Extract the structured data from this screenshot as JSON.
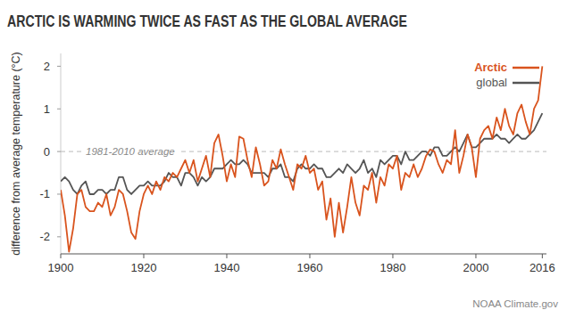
{
  "chart_data": {
    "type": "line",
    "title": "ARCTIC IS WARMING TWICE AS FAST AS THE GLOBAL AVERAGE",
    "y_label": "difference from average temperature (°C)",
    "source": "NOAA Climate.gov",
    "annotations": [
      {
        "text": "1981-2010 average",
        "y": 0
      }
    ],
    "x": [
      1900,
      1901,
      1902,
      1903,
      1904,
      1905,
      1906,
      1907,
      1908,
      1909,
      1910,
      1911,
      1912,
      1913,
      1914,
      1915,
      1916,
      1917,
      1918,
      1919,
      1920,
      1921,
      1922,
      1923,
      1924,
      1925,
      1926,
      1927,
      1928,
      1929,
      1930,
      1931,
      1932,
      1933,
      1934,
      1935,
      1936,
      1937,
      1938,
      1939,
      1940,
      1941,
      1942,
      1943,
      1944,
      1945,
      1946,
      1947,
      1948,
      1949,
      1950,
      1951,
      1952,
      1953,
      1954,
      1955,
      1956,
      1957,
      1958,
      1959,
      1960,
      1961,
      1962,
      1963,
      1964,
      1965,
      1966,
      1967,
      1968,
      1969,
      1970,
      1971,
      1972,
      1973,
      1974,
      1975,
      1976,
      1977,
      1978,
      1979,
      1980,
      1981,
      1982,
      1983,
      1984,
      1985,
      1986,
      1987,
      1988,
      1989,
      1990,
      1991,
      1992,
      1993,
      1994,
      1995,
      1996,
      1997,
      1998,
      1999,
      2000,
      2001,
      2002,
      2003,
      2004,
      2005,
      2006,
      2007,
      2008,
      2009,
      2010,
      2011,
      2012,
      2013,
      2014,
      2015,
      2016
    ],
    "series": [
      {
        "name": "Arctic",
        "color": "#d9541e",
        "values": [
          -0.9,
          -1.5,
          -2.35,
          -1.8,
          -1.0,
          -0.9,
          -1.3,
          -1.4,
          -1.4,
          -1.2,
          -1.3,
          -1.0,
          -1.5,
          -1.3,
          -0.9,
          -1.0,
          -1.4,
          -1.9,
          -2.05,
          -1.4,
          -1.0,
          -0.8,
          -1.0,
          -0.7,
          -0.9,
          -0.6,
          -0.7,
          -0.5,
          -0.6,
          -0.4,
          -0.2,
          -0.5,
          -0.2,
          -0.7,
          -0.4,
          -0.1,
          -0.6,
          0.2,
          0.4,
          -0.1,
          -0.7,
          -0.3,
          -0.6,
          0.35,
          0.3,
          -0.2,
          -0.6,
          0.1,
          -0.3,
          -0.8,
          -0.7,
          -0.2,
          -0.4,
          0.05,
          -0.3,
          -0.6,
          -0.9,
          -0.3,
          -0.4,
          -0.1,
          -0.5,
          -0.4,
          -0.9,
          -0.7,
          -1.6,
          -1.1,
          -2.0,
          -1.2,
          -1.9,
          -1.3,
          -0.6,
          -1.2,
          -1.5,
          -0.8,
          -0.9,
          -0.5,
          -1.2,
          -0.6,
          -0.8,
          -0.3,
          -0.4,
          -0.1,
          -0.9,
          -0.5,
          -0.6,
          -0.3,
          -0.6,
          -0.4,
          -0.1,
          0.05,
          0.0,
          -0.3,
          -0.5,
          -0.2,
          -0.3,
          0.5,
          -0.5,
          -0.1,
          0.4,
          0.1,
          -0.6,
          0.3,
          0.5,
          0.6,
          0.3,
          0.8,
          0.5,
          1.0,
          0.6,
          0.4,
          0.9,
          1.1,
          0.7,
          0.4,
          1.0,
          1.2,
          2.0
        ]
      },
      {
        "name": "global",
        "color": "#555555",
        "values": [
          -0.7,
          -0.6,
          -0.7,
          -0.9,
          -1.0,
          -0.8,
          -0.7,
          -1.0,
          -1.0,
          -0.9,
          -0.9,
          -1.0,
          -0.9,
          -0.9,
          -0.6,
          -0.6,
          -0.9,
          -1.0,
          -0.9,
          -0.8,
          -0.8,
          -0.7,
          -0.8,
          -0.8,
          -0.8,
          -0.7,
          -0.5,
          -0.6,
          -0.6,
          -0.8,
          -0.5,
          -0.5,
          -0.6,
          -0.8,
          -0.6,
          -0.7,
          -0.6,
          -0.4,
          -0.4,
          -0.4,
          -0.3,
          -0.2,
          -0.3,
          -0.3,
          -0.2,
          -0.3,
          -0.5,
          -0.5,
          -0.5,
          -0.5,
          -0.6,
          -0.4,
          -0.4,
          -0.3,
          -0.6,
          -0.6,
          -0.7,
          -0.4,
          -0.3,
          -0.4,
          -0.4,
          -0.3,
          -0.4,
          -0.4,
          -0.6,
          -0.6,
          -0.5,
          -0.4,
          -0.5,
          -0.3,
          -0.4,
          -0.5,
          -0.4,
          -0.2,
          -0.5,
          -0.4,
          -0.6,
          -0.2,
          -0.3,
          -0.2,
          -0.1,
          -0.1,
          -0.3,
          0.0,
          -0.2,
          -0.2,
          -0.1,
          0.0,
          0.0,
          -0.1,
          0.1,
          0.1,
          -0.1,
          -0.1,
          0.0,
          0.1,
          0.0,
          0.2,
          0.4,
          0.1,
          0.1,
          0.2,
          0.3,
          0.3,
          0.3,
          0.4,
          0.3,
          0.3,
          0.2,
          0.3,
          0.4,
          0.3,
          0.3,
          0.4,
          0.5,
          0.7,
          0.9
        ]
      }
    ],
    "xlim": [
      1900,
      2017
    ],
    "xticks": [
      1900,
      1920,
      1940,
      1960,
      1980,
      2000,
      2016
    ],
    "ylim": [
      -2.4,
      2.3
    ],
    "yticks": [
      -2,
      -1,
      0,
      1,
      2
    ],
    "grid": false,
    "legend": "top-right"
  }
}
